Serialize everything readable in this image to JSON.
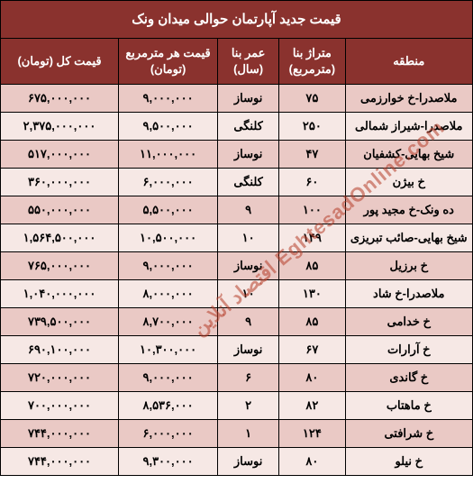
{
  "table": {
    "title": "قیمت جدید آپارتمان حوالی میدان ونک",
    "columns": [
      {
        "key": "region",
        "label": "منطقه",
        "width": "27%"
      },
      {
        "key": "area",
        "label": "متراژ بنا (مترمربع)",
        "width": "14%"
      },
      {
        "key": "age",
        "label": "عمر بنا (سال)",
        "width": "13%"
      },
      {
        "key": "unitprice",
        "label": "قیمت هر مترمربع (تومان)",
        "width": "21%"
      },
      {
        "key": "total",
        "label": "قیمت کل (تومان)",
        "width": "25%"
      }
    ],
    "rows": [
      {
        "region": "ملاصدرا-خ خوارزمی",
        "area": "۷۵",
        "age": "نوساز",
        "unitprice": "۹,۰۰۰,۰۰۰",
        "total": "۶۷۵,۰۰۰,۰۰۰"
      },
      {
        "region": "ملاصدرا-شیراز شمالی",
        "area": "۲۵۰",
        "age": "کلنگی",
        "unitprice": "۹,۵۰۰,۰۰۰",
        "total": "۲,۳۷۵,۰۰۰,۰۰۰"
      },
      {
        "region": "شیخ بهایی-کشفیان",
        "area": "۴۷",
        "age": "نوساز",
        "unitprice": "۱۱,۰۰۰,۰۰۰",
        "total": "۵۱۷,۰۰۰,۰۰۰"
      },
      {
        "region": "خ بیژن",
        "area": "۶۰",
        "age": "کلنگی",
        "unitprice": "۶,۰۰۰,۰۰۰",
        "total": "۳۶۰,۰۰۰,۰۰۰"
      },
      {
        "region": "ده ونک-خ مجید پور",
        "area": "۱۰۰",
        "age": "۹",
        "unitprice": "۵,۵۰۰,۰۰۰",
        "total": "۵۵۰,۰۰۰,۰۰۰"
      },
      {
        "region": "شیخ بهایی-صائب تبریزی",
        "area": "۱۴۹",
        "age": "۱۰",
        "unitprice": "۱۰,۵۰۰,۰۰۰",
        "total": "۱,۵۶۴,۵۰۰,۰۰۰"
      },
      {
        "region": "خ برزیل",
        "area": "۸۵",
        "age": "نوساز",
        "unitprice": "۹,۰۰۰,۰۰۰",
        "total": "۷۶۵,۰۰۰,۰۰۰"
      },
      {
        "region": "ملاصدرا-خ شاد",
        "area": "۱۳۰",
        "age": "۱۰",
        "unitprice": "۸,۰۰۰,۰۰۰",
        "total": "۱,۰۴۰,۰۰۰,۰۰۰"
      },
      {
        "region": "خ خدامی",
        "area": "۸۵",
        "age": "۹",
        "unitprice": "۸,۷۰۰,۰۰۰",
        "total": "۷۳۹,۵۰۰,۰۰۰"
      },
      {
        "region": "خ آرارات",
        "area": "۶۷",
        "age": "نوساز",
        "unitprice": "۱۰,۳۰۰,۰۰۰",
        "total": "۶۹۰,۱۰۰,۰۰۰"
      },
      {
        "region": "خ گاندی",
        "area": "۸۰",
        "age": "۶",
        "unitprice": "۹,۰۰۰,۰۰۰",
        "total": "۷۲۰,۰۰۰,۰۰۰"
      },
      {
        "region": "خ ماهتاب",
        "area": "۸۲",
        "age": "۲",
        "unitprice": "۸,۵۳۶,۰۰۰",
        "total": "۷۰۰,۰۰۰,۰۰۰"
      },
      {
        "region": "خ شرافتی",
        "area": "۱۲۴",
        "age": "۱",
        "unitprice": "۶,۰۰۰,۰۰۰",
        "total": "۷۴۴,۰۰۰,۰۰۰"
      },
      {
        "region": "خ نیلو",
        "area": "۸۰",
        "age": "نوساز",
        "unitprice": "۹,۳۰۰,۰۰۰",
        "total": "۷۴۴,۰۰۰,۰۰۰"
      }
    ],
    "header_bg": "#8a322e",
    "header_fg": "#ffffff",
    "row_odd_bg": "#eac9c5",
    "row_even_bg": "#f6e8e5",
    "border_color": "#000000"
  },
  "watermark": "EghtesadOnline.com اقتصاد آنلاین"
}
